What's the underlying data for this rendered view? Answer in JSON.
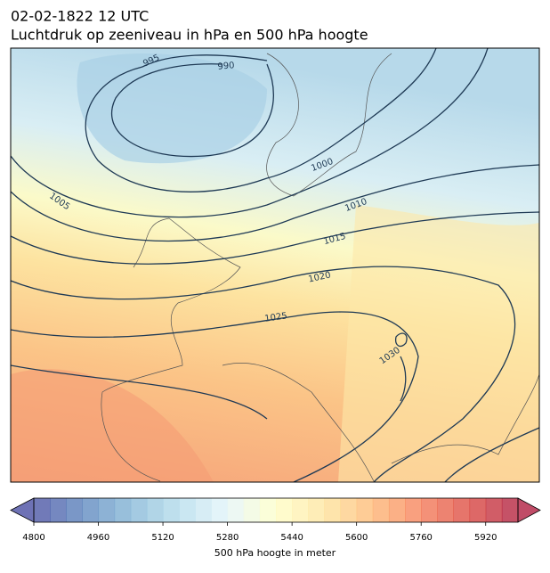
{
  "header": {
    "line1": "02-02-1822 12 UTC",
    "line2": "Luchtdruk op zeeniveau in hPa en 500 hPa hoogte"
  },
  "isobar_labels": [
    995,
    990,
    1000,
    1005,
    1010,
    1015,
    1020,
    1025,
    1030
  ],
  "colorbar": {
    "range": [
      4800,
      6000
    ],
    "bin_width": 40,
    "ticks": [
      4800,
      4960,
      5120,
      5280,
      5440,
      5600,
      5760,
      5920
    ],
    "label": "500 hPa hoogte in meter",
    "colormap": [
      "#313695",
      "#4575b4",
      "#74add1",
      "#abd9e9",
      "#e0f3f8",
      "#ffffbf",
      "#fee090",
      "#fdae61",
      "#f46d43",
      "#d73027",
      "#a50026"
    ],
    "alpha": 0.7
  }
}
